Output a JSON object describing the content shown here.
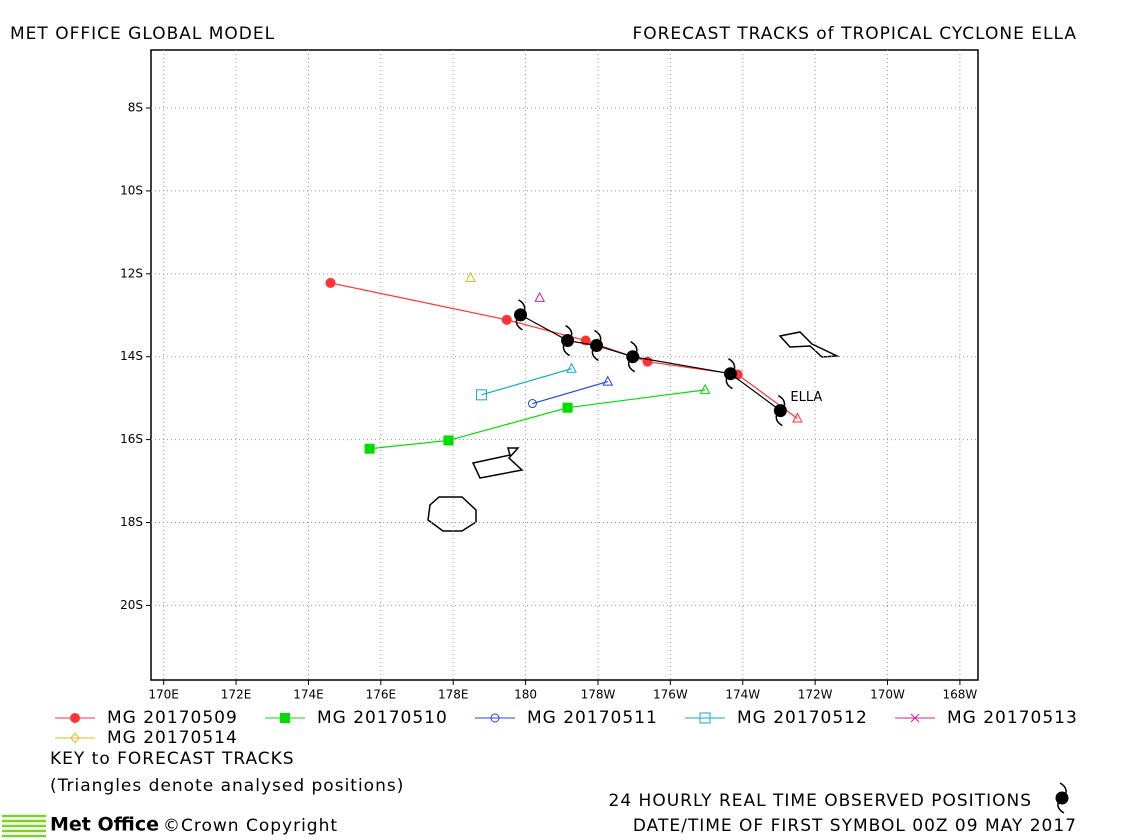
{
  "header": {
    "left": "MET OFFICE GLOBAL MODEL",
    "right": "FORECAST TRACKS of TROPICAL CYCLONE ELLA"
  },
  "chart_data": {
    "type": "line",
    "xlim": [
      169.65,
      192.5
    ],
    "ylim": [
      -21.8,
      -6.6
    ],
    "grid": true,
    "xticks": [
      {
        "value": 170,
        "label": "170E"
      },
      {
        "value": 172,
        "label": "172E"
      },
      {
        "value": 174,
        "label": "174E"
      },
      {
        "value": 176,
        "label": "176E"
      },
      {
        "value": 178,
        "label": "178E"
      },
      180,
      {
        "value": 182,
        "label": "178W"
      },
      {
        "value": 184,
        "label": "176W"
      },
      {
        "value": 186,
        "label": "174W"
      },
      {
        "value": 188,
        "label": "172W"
      },
      {
        "value": 190,
        "label": "170W"
      },
      {
        "value": 192,
        "label": "168W"
      }
    ],
    "yticks": [
      {
        "value": -8,
        "label": "8S"
      },
      {
        "value": -10,
        "label": "10S"
      },
      {
        "value": -12,
        "label": "12S"
      },
      {
        "value": -14,
        "label": "14S"
      },
      {
        "value": -16,
        "label": "16S"
      },
      {
        "value": -18,
        "label": "18S"
      },
      {
        "value": -20,
        "label": "20S"
      }
    ],
    "series": [
      {
        "name": "MG 20170509",
        "color": "#ff3333",
        "marker": "circle-filled",
        "x": [
          174.61,
          179.48,
          181.66,
          183.37,
          185.86
        ],
        "y": [
          -12.22,
          -13.11,
          -13.61,
          -14.12,
          -14.43
        ],
        "analysed": {
          "x": 187.51,
          "y": -15.49
        }
      },
      {
        "name": "MG 20170510",
        "color": "#00dd00",
        "marker": "square-filled",
        "x": [
          175.69,
          177.87,
          181.16
        ],
        "y": [
          -16.22,
          -16.02,
          -15.23
        ],
        "analysed": {
          "x": 184.96,
          "y": -14.8
        }
      },
      {
        "name": "MG 20170511",
        "color": "#2244dd",
        "marker": "circle-open",
        "x": [
          180.19
        ],
        "y": [
          -15.13
        ],
        "analysed": {
          "x": 182.27,
          "y": -14.6
        }
      },
      {
        "name": "MG 20170512",
        "color": "#11aacc",
        "marker": "square-open",
        "x": [
          178.78
        ],
        "y": [
          -14.92
        ],
        "analysed": {
          "x": 181.27,
          "y": -14.29
        }
      },
      {
        "name": "MG 20170513",
        "color": "#cc2299",
        "marker": "x",
        "x": [],
        "y": [],
        "analysed": {
          "x": 180.39,
          "y": -12.58
        }
      },
      {
        "name": "MG 20170514",
        "color": "#ddbb22",
        "marker": "diamond-open",
        "x": [],
        "y": [],
        "analysed": {
          "x": 178.48,
          "y": -12.1
        }
      }
    ],
    "observed": {
      "label": "ELLA",
      "x": [
        179.86,
        181.16,
        181.96,
        182.96,
        185.66,
        187.04
      ],
      "y": [
        -12.99,
        -13.61,
        -13.73,
        -14.0,
        -14.41,
        -15.3
      ]
    }
  },
  "footer": {
    "key": "KEY to FORECAST TRACKS",
    "note": "(Triangles denote analysed positions)",
    "observed": "24 HOURLY REAL TIME OBSERVED POSITIONS",
    "datetime": "DATE/TIME OF FIRST SYMBOL 00Z 09 MAY 2017",
    "brand": "Met Office",
    "copyright": "©Crown Copyright"
  }
}
